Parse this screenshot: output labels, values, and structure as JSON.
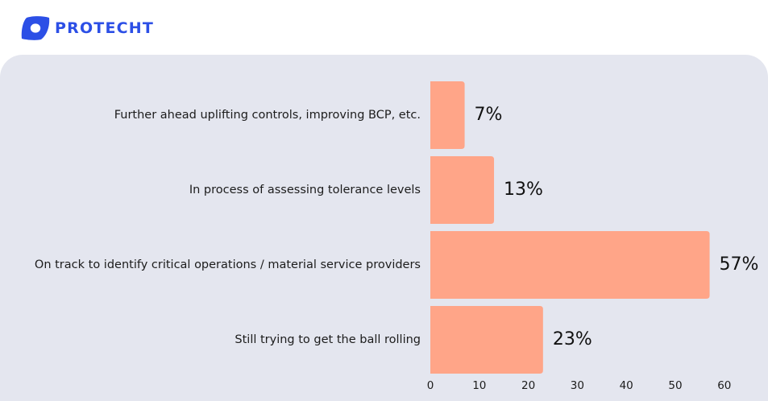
{
  "brand": {
    "name": "PROTECHT",
    "color": "#2c4fe6",
    "logo_icon": "protecht-logo-icon"
  },
  "panel_color": "#e4e6ef",
  "chart_data": {
    "type": "bar",
    "orientation": "horizontal",
    "categories": [
      "Further ahead uplifting controls, improving BCP, etc.",
      "In process of assessing tolerance levels",
      "On track to identify critical operations / material service providers",
      "Still trying to get the ball rolling"
    ],
    "values": [
      7,
      13,
      57,
      23
    ],
    "value_labels": [
      "7%",
      "13%",
      "57%",
      "23%"
    ],
    "xlim": [
      0,
      60
    ],
    "xticks": [
      "0",
      "10",
      "20",
      "30",
      "40",
      "50",
      "60"
    ],
    "bar_color": "#ffa588",
    "grid": false,
    "legend": "none"
  }
}
